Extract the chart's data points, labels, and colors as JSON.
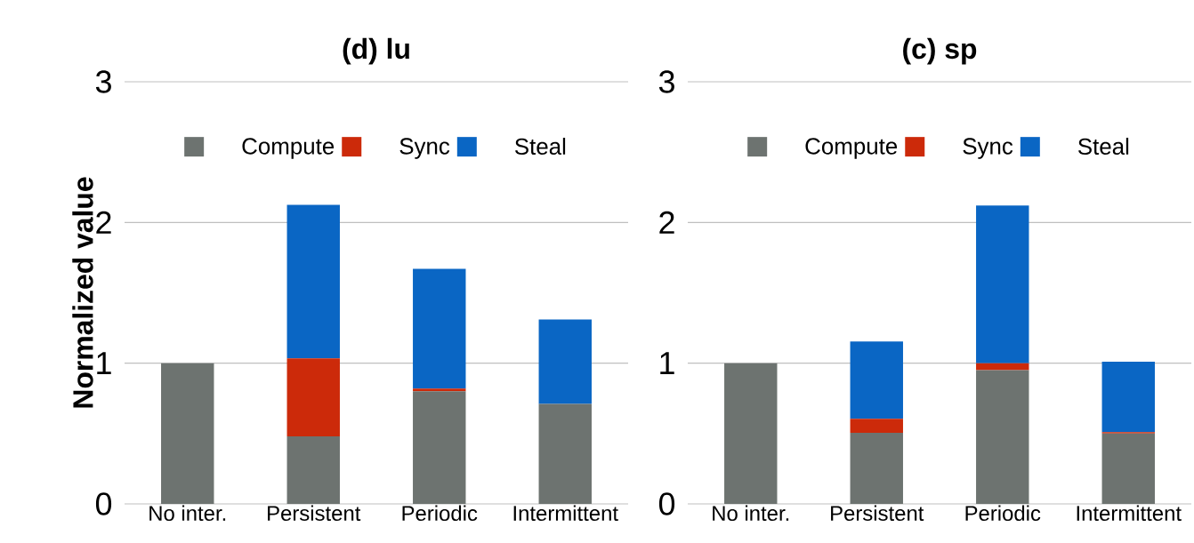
{
  "chart_data": [
    {
      "type": "bar",
      "title": "(d) lu",
      "ylabel": "Normalized value",
      "categories": [
        "No inter.",
        "Persistent",
        "Periodic",
        "Intermittent"
      ],
      "stacked": true,
      "ylim": [
        0,
        3
      ],
      "yticks": [
        0,
        1,
        2,
        3
      ],
      "grid": "y",
      "legend": "top",
      "series": [
        {
          "name": "Compute",
          "color": "#6d7370",
          "values": [
            1.0,
            0.48,
            0.8,
            0.71
          ]
        },
        {
          "name": "Sync",
          "color": "#cc2a0a",
          "values": [
            0,
            0.555,
            0.02,
            0
          ]
        },
        {
          "name": "Steal",
          "color": "#0a66c4",
          "values": [
            0,
            1.09,
            0.85,
            0.6
          ]
        }
      ]
    },
    {
      "type": "bar",
      "title": "(c) sp",
      "categories": [
        "No inter.",
        "Persistent",
        "Periodic",
        "Intermittent"
      ],
      "stacked": true,
      "ylim": [
        0,
        3
      ],
      "yticks": [
        0,
        1,
        2,
        3
      ],
      "grid": "y",
      "legend": "top",
      "series": [
        {
          "name": "Compute",
          "color": "#6d7370",
          "values": [
            1.0,
            0.505,
            0.95,
            0.5
          ]
        },
        {
          "name": "Sync",
          "color": "#cc2a0a",
          "values": [
            0,
            0.1,
            0.05,
            0.01
          ]
        },
        {
          "name": "Steal",
          "color": "#0a66c4",
          "values": [
            0,
            0.55,
            1.12,
            0.5
          ]
        }
      ]
    }
  ]
}
